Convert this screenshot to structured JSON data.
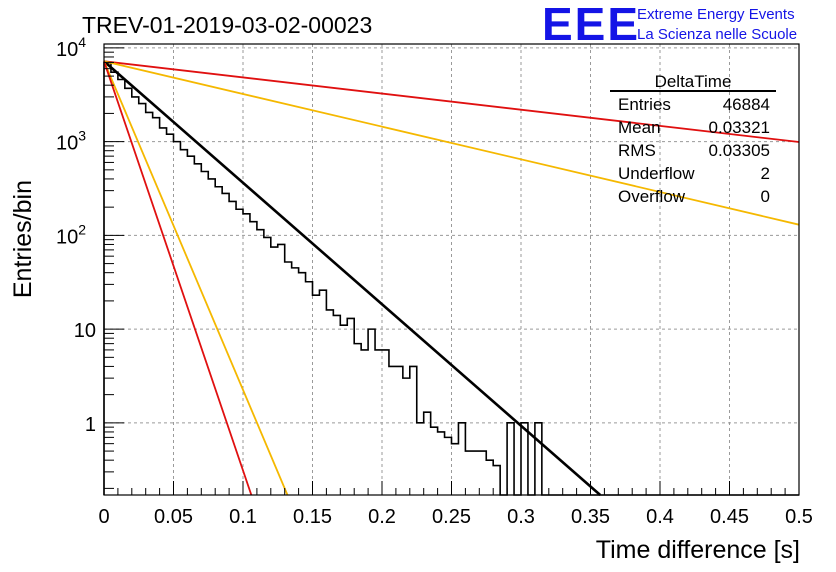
{
  "chart_data": {
    "type": "histogram",
    "title": "TREV-01-2019-03-02-00023",
    "xlabel": "Time difference [s]",
    "ylabel": "Entries/bin",
    "xlim": [
      0,
      0.5
    ],
    "ylim": [
      0.17,
      11000
    ],
    "yscale": "log",
    "grid": true,
    "x_ticks": [
      "0",
      "0.05",
      "0.1",
      "0.15",
      "0.2",
      "0.25",
      "0.3",
      "0.35",
      "0.4",
      "0.45",
      "0.5"
    ],
    "y_ticks": [
      {
        "value": 1,
        "base": "1",
        "exp": ""
      },
      {
        "value": 10,
        "base": "10",
        "exp": ""
      },
      {
        "value": 100,
        "base": "10",
        "exp": "2"
      },
      {
        "value": 1000,
        "base": "10",
        "exp": "3"
      },
      {
        "value": 10000,
        "base": "10",
        "exp": "4"
      }
    ],
    "histogram": {
      "name": "DeltaTime",
      "bin_width": 0.005,
      "x_start": 0,
      "color": "#000000",
      "counts": [
        6900,
        5500,
        4600,
        3700,
        3000,
        2550,
        2050,
        1800,
        1400,
        1200,
        1000,
        820,
        700,
        580,
        480,
        400,
        330,
        280,
        230,
        190,
        170,
        140,
        115,
        95,
        75,
        80,
        52,
        45,
        40,
        32,
        23,
        26,
        16,
        14,
        11,
        13,
        7,
        6,
        10,
        6,
        6,
        4,
        4,
        3,
        4,
        1,
        1.3,
        0.9,
        0.8,
        0.7,
        0.6,
        1,
        0.5,
        0.5,
        0.5,
        0.4,
        0.35,
        0,
        1,
        0,
        1,
        0,
        1,
        0,
        0,
        0,
        0,
        0,
        0,
        0,
        0,
        0,
        0,
        0,
        0,
        0,
        0,
        0,
        0,
        0,
        0,
        0,
        0,
        0,
        0,
        0,
        0,
        0,
        0,
        0,
        0,
        0,
        0,
        0,
        0,
        0,
        0,
        0,
        0,
        0
      ]
    },
    "fits": [
      {
        "color": "#000000",
        "points": [
          [
            0,
            7200
          ],
          [
            0.357,
            0.17
          ]
        ],
        "width": 2.6
      },
      {
        "color": "#e01010",
        "points": [
          [
            0,
            7200
          ],
          [
            0.5,
            990
          ]
        ],
        "width": 1.8
      },
      {
        "color": "#f5b800",
        "points": [
          [
            0,
            7200
          ],
          [
            0.5,
            130
          ]
        ],
        "width": 1.8
      },
      {
        "color": "#f5b800",
        "points": [
          [
            0,
            7200
          ],
          [
            0.132,
            0.17
          ]
        ],
        "width": 1.8
      },
      {
        "color": "#e01010",
        "points": [
          [
            0,
            7200
          ],
          [
            0.106,
            0.17
          ]
        ],
        "width": 1.8
      }
    ],
    "stats_box": {
      "name": "DeltaTime",
      "rows": [
        {
          "label": "Entries",
          "value": "46884"
        },
        {
          "label": "Mean",
          "value": "0.03321"
        },
        {
          "label": "RMS",
          "value": "0.03305"
        },
        {
          "label": "Underflow",
          "value": "2"
        },
        {
          "label": "Overflow",
          "value": "0"
        }
      ]
    }
  },
  "logo": {
    "mark": "EEE",
    "line1": "Extreme Energy Events",
    "line2": "La Scienza nelle Scuole"
  }
}
